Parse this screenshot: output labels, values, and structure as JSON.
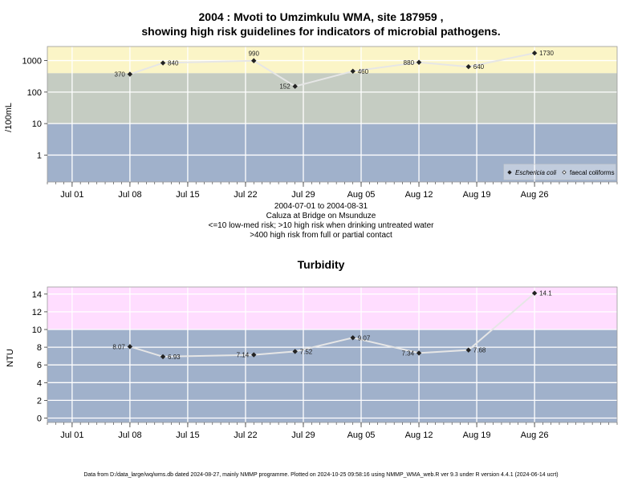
{
  "top_chart": {
    "title_line1": "2004 : Mvoti to Umzimkulu WMA, site 187959 ,",
    "title_line2": "showing high risk guidelines for indicators of microbial pathogens.",
    "ylabel": "/100mL",
    "caption_lines": [
      "2004-07-01 to 2004-08-31",
      "Caluza at Bridge on Msunduze",
      "<=10 low-med risk; >10 high risk when drinking untreated water",
      ">400 high risk from full or partial contact"
    ],
    "legend": [
      "Eschericia coli",
      "faecal coliforms"
    ]
  },
  "bottom_chart": {
    "title": "Turbidity",
    "ylabel": "NTU"
  },
  "footer": "Data from D:/data_large/wq/wms.db dated 2024-08-27, mainly NMMP programme. Plotted on 2024-10-25 09:58:16 using NMMP_WMA_web.R ver 9.3 under R version 4.4.1 (2024-06-14 ucrt)",
  "colors": {
    "band_low": "#a0b1cb",
    "band_mid": "#c5ccc2",
    "band_high_ecoli": "#fbf5c7",
    "band_high_turb": "#ffddff",
    "line": "#e6e6e6",
    "marker": "#222222",
    "grid": "#ffffff"
  },
  "chart_data": [
    {
      "type": "line",
      "title": "2004 : Mvoti to Umzimkulu WMA, site 187959 , showing high risk guidelines for indicators of microbial pathogens.",
      "ylabel": "/100mL",
      "yscale": "log",
      "ylim": [
        0.14,
        2800
      ],
      "yticks": [
        1,
        10,
        100,
        1000
      ],
      "ytick_labels": [
        "1",
        "10",
        "100",
        "1000"
      ],
      "xlim": [
        "2004-06-28",
        "2004-09-05"
      ],
      "xticks": [
        "2004-07-01",
        "2004-07-08",
        "2004-07-15",
        "2004-07-22",
        "2004-07-29",
        "2004-08-05",
        "2004-08-12",
        "2004-08-19",
        "2004-08-26"
      ],
      "xtick_labels": [
        "Jul 01",
        "Jul 08",
        "Jul 15",
        "Jul 22",
        "Jul 29",
        "Aug 05",
        "Aug 12",
        "Aug 19",
        "Aug 26"
      ],
      "bands": [
        {
          "from": 0.14,
          "to": 10,
          "color": "#a0b1cb"
        },
        {
          "from": 10,
          "to": 400,
          "color": "#c5ccc2"
        },
        {
          "from": 400,
          "to": 2800,
          "color": "#fbf5c7"
        }
      ],
      "legend_position": "bottom-right",
      "series": [
        {
          "name": "Eschericia coli",
          "x": [
            "2004-07-08",
            "2004-07-12",
            "2004-07-23",
            "2004-07-28",
            "2004-08-04",
            "2004-08-12",
            "2004-08-18",
            "2004-08-26"
          ],
          "values": [
            370,
            840,
            990,
            152,
            460,
            880,
            640,
            1730
          ],
          "labels": [
            "370",
            "840",
            "990",
            "152",
            "460",
            "880",
            "640",
            "1730"
          ]
        }
      ]
    },
    {
      "type": "line",
      "title": "Turbidity",
      "ylabel": "NTU",
      "ylim": [
        -0.5,
        14.8
      ],
      "yticks": [
        0,
        2,
        4,
        6,
        8,
        10,
        12,
        14
      ],
      "ytick_labels": [
        "0",
        "2",
        "4",
        "6",
        "8",
        "10",
        "12",
        "14"
      ],
      "xlim": [
        "2004-06-28",
        "2004-09-05"
      ],
      "xticks": [
        "2004-07-01",
        "2004-07-08",
        "2004-07-15",
        "2004-07-22",
        "2004-07-29",
        "2004-08-05",
        "2004-08-12",
        "2004-08-19",
        "2004-08-26"
      ],
      "xtick_labels": [
        "Jul 01",
        "Jul 08",
        "Jul 15",
        "Jul 22",
        "Jul 29",
        "Aug 05",
        "Aug 12",
        "Aug 19",
        "Aug 26"
      ],
      "bands": [
        {
          "from": -0.5,
          "to": 10,
          "color": "#a0b1cb"
        },
        {
          "from": 10,
          "to": 14.8,
          "color": "#ffddff"
        }
      ],
      "series": [
        {
          "x": [
            "2004-07-08",
            "2004-07-12",
            "2004-07-23",
            "2004-07-28",
            "2004-08-04",
            "2004-08-12",
            "2004-08-18",
            "2004-08-26"
          ],
          "values": [
            8.07,
            6.93,
            7.14,
            7.52,
            9.07,
            7.34,
            7.68,
            14.1
          ],
          "labels": [
            "8.07",
            "6.93",
            "7.14",
            "7.52",
            "9.07",
            "7.34",
            "7.68",
            "14.1"
          ]
        }
      ]
    }
  ]
}
